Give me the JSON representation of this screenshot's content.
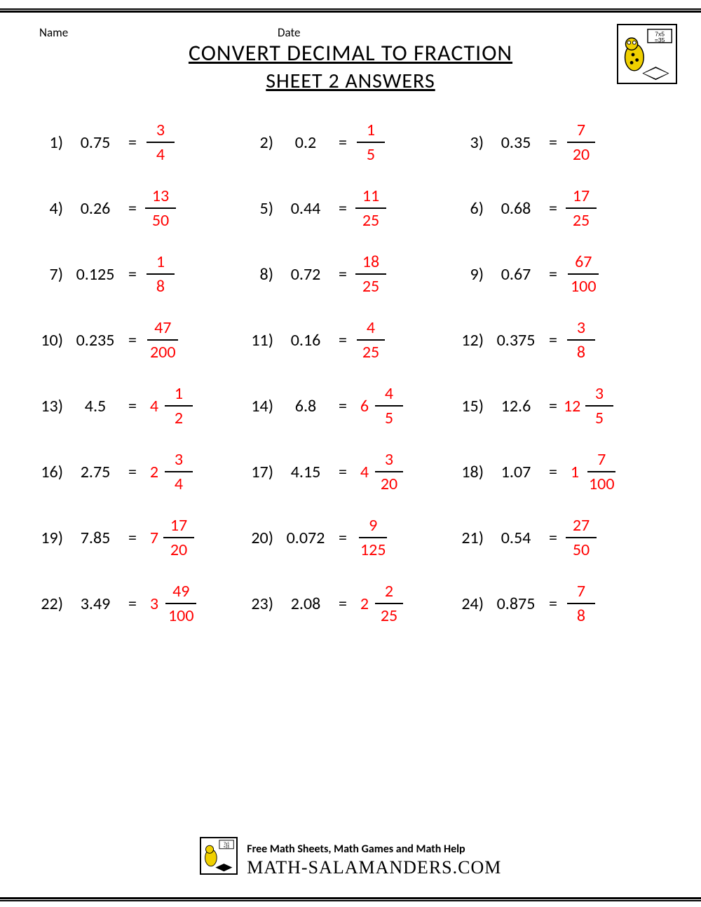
{
  "header": {
    "name_label": "Name",
    "date_label": "Date",
    "title_line1": "CONVERT DECIMAL TO FRACTION",
    "title_line2": "SHEET 2 ANSWERS"
  },
  "colors": {
    "answer_color": "#ff0000",
    "text_color": "#000000",
    "background": "#ffffff"
  },
  "typography": {
    "body_font": "Calibri, Arial, sans-serif",
    "title_fontsize": 32,
    "problem_fontsize": 24,
    "header_fontsize": 17
  },
  "problems": [
    {
      "n": "1)",
      "decimal": "0.75",
      "whole": "",
      "num": "3",
      "den": "4"
    },
    {
      "n": "2)",
      "decimal": "0.2",
      "whole": "",
      "num": "1",
      "den": "5"
    },
    {
      "n": "3)",
      "decimal": "0.35",
      "whole": "",
      "num": "7",
      "den": "20"
    },
    {
      "n": "4)",
      "decimal": "0.26",
      "whole": "",
      "num": "13",
      "den": "50"
    },
    {
      "n": "5)",
      "decimal": "0.44",
      "whole": "",
      "num": "11",
      "den": "25"
    },
    {
      "n": "6)",
      "decimal": "0.68",
      "whole": "",
      "num": "17",
      "den": "25"
    },
    {
      "n": "7)",
      "decimal": "0.125",
      "whole": "",
      "num": "1",
      "den": "8"
    },
    {
      "n": "8)",
      "decimal": "0.72",
      "whole": "",
      "num": "18",
      "den": "25"
    },
    {
      "n": "9)",
      "decimal": "0.67",
      "whole": "",
      "num": "67",
      "den": "100"
    },
    {
      "n": "10)",
      "decimal": "0.235",
      "whole": "",
      "num": "47",
      "den": "200"
    },
    {
      "n": "11)",
      "decimal": "0.16",
      "whole": "",
      "num": "4",
      "den": "25"
    },
    {
      "n": "12)",
      "decimal": "0.375",
      "whole": "",
      "num": "3",
      "den": "8"
    },
    {
      "n": "13)",
      "decimal": "4.5",
      "whole": "4",
      "num": "1",
      "den": "2"
    },
    {
      "n": "14)",
      "decimal": "6.8",
      "whole": "6",
      "num": "4",
      "den": "5"
    },
    {
      "n": "15)",
      "decimal": "12.6",
      "whole": "12",
      "num": "3",
      "den": "5"
    },
    {
      "n": "16)",
      "decimal": "2.75",
      "whole": "2",
      "num": "3",
      "den": "4"
    },
    {
      "n": "17)",
      "decimal": "4.15",
      "whole": "4",
      "num": "3",
      "den": "20"
    },
    {
      "n": "18)",
      "decimal": "1.07",
      "whole": "1",
      "num": "7",
      "den": "100"
    },
    {
      "n": "19)",
      "decimal": "7.85",
      "whole": "7",
      "num": "17",
      "den": "20"
    },
    {
      "n": "20)",
      "decimal": "0.072",
      "whole": "",
      "num": "9",
      "den": "125"
    },
    {
      "n": "21)",
      "decimal": "0.54",
      "whole": "",
      "num": "27",
      "den": "50"
    },
    {
      "n": "22)",
      "decimal": "3.49",
      "whole": "3",
      "num": "49",
      "den": "100"
    },
    {
      "n": "23)",
      "decimal": "2.08",
      "whole": "2",
      "num": "2",
      "den": "25"
    },
    {
      "n": "24)",
      "decimal": "0.875",
      "whole": "",
      "num": "7",
      "den": "8"
    }
  ],
  "footer": {
    "line1": "Free Math Sheets, Math Games and Math Help",
    "line2": "MATH-SALAMANDERS.COM"
  },
  "logo": {
    "caption": "7x5=35",
    "salamander_color": "#f0d000",
    "spot_color": "#000000"
  }
}
